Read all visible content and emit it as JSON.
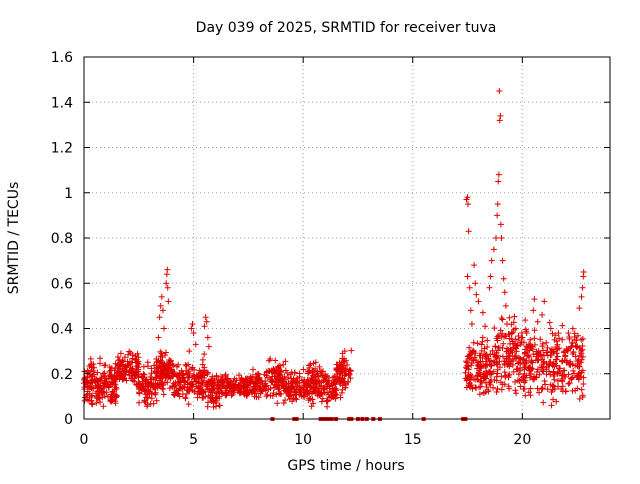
{
  "chart_data": {
    "type": "scatter",
    "title": "Day 039 of 2025, SRMTID for receiver tuva",
    "xlabel": "GPS time / hours",
    "ylabel": "SRMTID / TECUs",
    "xlim": [
      0,
      24
    ],
    "ylim": [
      0,
      1.6
    ],
    "xticks": [
      0,
      5,
      10,
      15,
      20
    ],
    "xtick_labels": [
      "0",
      "5",
      "10",
      "15",
      "20"
    ],
    "yticks": [
      0,
      0.2,
      0.4,
      0.6,
      0.8,
      1,
      1.2,
      1.4,
      1.6
    ],
    "ytick_labels": [
      "0",
      "0.2",
      "0.4",
      "0.6",
      "0.8",
      "1",
      "1.2",
      "1.4",
      "1.6"
    ],
    "grid": true,
    "marker": "+",
    "color": "#e00000",
    "segments": [
      {
        "x0": 0.0,
        "x1": 1.5,
        "base": 0.16,
        "spread": 0.06,
        "count": 180
      },
      {
        "x0": 1.5,
        "x1": 2.5,
        "base": 0.22,
        "spread": 0.04,
        "count": 110
      },
      {
        "x0": 2.5,
        "x1": 3.3,
        "base": 0.14,
        "spread": 0.05,
        "count": 90
      },
      {
        "x0": 3.3,
        "x1": 4.0,
        "base": 0.2,
        "spread": 0.06,
        "count": 100
      },
      {
        "x0": 4.0,
        "x1": 5.5,
        "base": 0.17,
        "spread": 0.05,
        "count": 160
      },
      {
        "x0": 5.5,
        "x1": 6.2,
        "base": 0.13,
        "spread": 0.05,
        "count": 80
      },
      {
        "x0": 6.2,
        "x1": 8.3,
        "base": 0.15,
        "spread": 0.03,
        "count": 200
      },
      {
        "x0": 8.3,
        "x1": 9.2,
        "base": 0.17,
        "spread": 0.05,
        "count": 90
      },
      {
        "x0": 9.2,
        "x1": 10.2,
        "base": 0.14,
        "spread": 0.04,
        "count": 100
      },
      {
        "x0": 10.2,
        "x1": 11.1,
        "base": 0.16,
        "spread": 0.05,
        "count": 100
      },
      {
        "x0": 11.1,
        "x1": 11.5,
        "base": 0.14,
        "spread": 0.04,
        "count": 40
      },
      {
        "x0": 11.5,
        "x1": 12.2,
        "base": 0.19,
        "spread": 0.06,
        "count": 80
      },
      {
        "x0": 17.4,
        "x1": 18.7,
        "base": 0.22,
        "spread": 0.07,
        "count": 140
      },
      {
        "x0": 18.7,
        "x1": 19.8,
        "base": 0.28,
        "spread": 0.09,
        "count": 120
      },
      {
        "x0": 19.8,
        "x1": 22.8,
        "base": 0.25,
        "spread": 0.09,
        "count": 300
      }
    ],
    "bottom_points": [
      8.6,
      9.6,
      9.7,
      10.8,
      10.9,
      11.0,
      11.1,
      11.2,
      11.3,
      11.5,
      12.1,
      12.2,
      12.5,
      12.7,
      12.9,
      13.2,
      13.5,
      15.5,
      17.3,
      17.4
    ],
    "spikes": [
      {
        "x": 3.45,
        "y": 0.45
      },
      {
        "x": 3.5,
        "y": 0.5
      },
      {
        "x": 3.55,
        "y": 0.54
      },
      {
        "x": 3.6,
        "y": 0.48
      },
      {
        "x": 3.65,
        "y": 0.4
      },
      {
        "x": 3.75,
        "y": 0.6
      },
      {
        "x": 3.78,
        "y": 0.64
      },
      {
        "x": 3.8,
        "y": 0.66
      },
      {
        "x": 3.82,
        "y": 0.58
      },
      {
        "x": 3.85,
        "y": 0.52
      },
      {
        "x": 3.4,
        "y": 0.36
      },
      {
        "x": 4.3,
        "y": 0.24
      },
      {
        "x": 4.8,
        "y": 0.3
      },
      {
        "x": 4.9,
        "y": 0.4
      },
      {
        "x": 4.95,
        "y": 0.42
      },
      {
        "x": 5.0,
        "y": 0.38
      },
      {
        "x": 5.1,
        "y": 0.33
      },
      {
        "x": 5.5,
        "y": 0.41
      },
      {
        "x": 5.55,
        "y": 0.45
      },
      {
        "x": 5.6,
        "y": 0.43
      },
      {
        "x": 5.65,
        "y": 0.36
      },
      {
        "x": 5.7,
        "y": 0.32
      },
      {
        "x": 11.8,
        "y": 0.29
      },
      {
        "x": 11.9,
        "y": 0.3
      },
      {
        "x": 17.45,
        "y": 0.97
      },
      {
        "x": 17.5,
        "y": 0.98
      },
      {
        "x": 17.52,
        "y": 0.95
      },
      {
        "x": 17.55,
        "y": 0.83
      },
      {
        "x": 17.5,
        "y": 0.63
      },
      {
        "x": 17.6,
        "y": 0.58
      },
      {
        "x": 17.65,
        "y": 0.48
      },
      {
        "x": 17.7,
        "y": 0.42
      },
      {
        "x": 17.8,
        "y": 0.68
      },
      {
        "x": 17.85,
        "y": 0.6
      },
      {
        "x": 17.9,
        "y": 0.55
      },
      {
        "x": 18.0,
        "y": 0.52
      },
      {
        "x": 18.2,
        "y": 0.47
      },
      {
        "x": 18.3,
        "y": 0.41
      },
      {
        "x": 18.5,
        "y": 0.58
      },
      {
        "x": 18.55,
        "y": 0.63
      },
      {
        "x": 18.6,
        "y": 0.7
      },
      {
        "x": 18.7,
        "y": 0.75
      },
      {
        "x": 18.8,
        "y": 0.8
      },
      {
        "x": 18.85,
        "y": 0.9
      },
      {
        "x": 18.88,
        "y": 0.95
      },
      {
        "x": 18.9,
        "y": 1.05
      },
      {
        "x": 18.93,
        "y": 1.08
      },
      {
        "x": 18.97,
        "y": 1.32
      },
      {
        "x": 19.0,
        "y": 1.34
      },
      {
        "x": 18.95,
        "y": 1.45
      },
      {
        "x": 19.02,
        "y": 0.86
      },
      {
        "x": 19.05,
        "y": 0.8
      },
      {
        "x": 19.1,
        "y": 0.7
      },
      {
        "x": 19.15,
        "y": 0.62
      },
      {
        "x": 19.2,
        "y": 0.56
      },
      {
        "x": 19.25,
        "y": 0.5
      },
      {
        "x": 19.1,
        "y": 0.44
      },
      {
        "x": 19.3,
        "y": 0.42
      },
      {
        "x": 20.0,
        "y": 0.36
      },
      {
        "x": 20.2,
        "y": 0.38
      },
      {
        "x": 20.5,
        "y": 0.48
      },
      {
        "x": 20.55,
        "y": 0.53
      },
      {
        "x": 20.7,
        "y": 0.43
      },
      {
        "x": 20.9,
        "y": 0.46
      },
      {
        "x": 21.0,
        "y": 0.52
      },
      {
        "x": 21.3,
        "y": 0.4
      },
      {
        "x": 21.5,
        "y": 0.37
      },
      {
        "x": 22.1,
        "y": 0.38
      },
      {
        "x": 22.4,
        "y": 0.35
      },
      {
        "x": 22.6,
        "y": 0.49
      },
      {
        "x": 22.7,
        "y": 0.54
      },
      {
        "x": 22.75,
        "y": 0.58
      },
      {
        "x": 22.78,
        "y": 0.63
      },
      {
        "x": 22.8,
        "y": 0.65
      }
    ]
  }
}
